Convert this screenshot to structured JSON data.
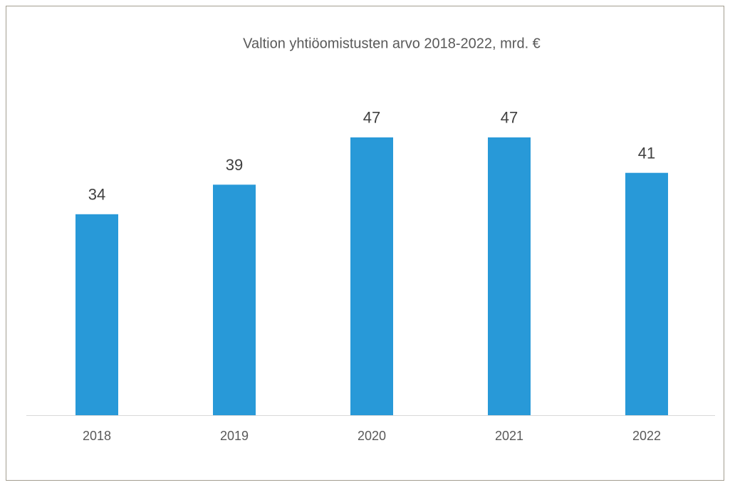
{
  "chart_data": {
    "type": "bar",
    "title": "Valtion yhtiöomistusten arvo 2018-2022, mrd. €",
    "categories": [
      "2018",
      "2019",
      "2020",
      "2021",
      "2022"
    ],
    "values": [
      34,
      39,
      47,
      47,
      41
    ],
    "color": "#2899d8"
  }
}
